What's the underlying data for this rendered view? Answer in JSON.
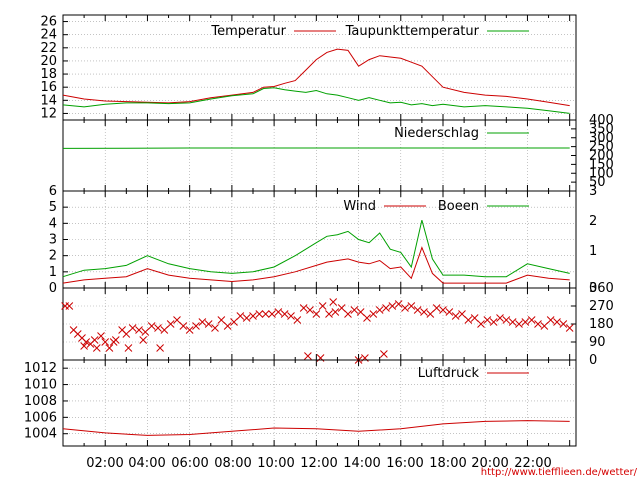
{
  "chart_data": [
    {
      "type": "line",
      "ylim": [
        11,
        27
      ],
      "yticks": [
        12,
        14,
        16,
        18,
        20,
        22,
        24,
        26
      ],
      "grid": true,
      "legend_position": "top",
      "series": [
        {
          "name": "Temperatur",
          "color": "#cc0000",
          "x": [
            0,
            1,
            2,
            3,
            4,
            5,
            6,
            7,
            8,
            9,
            9.5,
            10,
            10.5,
            11,
            11.5,
            12,
            12.5,
            13,
            13.5,
            14,
            14.5,
            15,
            15.5,
            16,
            16.5,
            17,
            17.5,
            18,
            19,
            20,
            21,
            22,
            23,
            24
          ],
          "values": [
            14.8,
            14.2,
            13.9,
            13.8,
            13.7,
            13.6,
            13.8,
            14.4,
            14.8,
            15.2,
            16.0,
            16.1,
            16.6,
            17.0,
            18.6,
            20.2,
            21.3,
            21.8,
            21.6,
            19.2,
            20.2,
            20.8,
            20.6,
            20.4,
            19.8,
            19.2,
            17.6,
            16.0,
            15.2,
            14.8,
            14.6,
            14.2,
            13.7,
            13.2
          ]
        },
        {
          "name": "Taupunkttemperatur",
          "color": "#00a000",
          "x": [
            0,
            1,
            2,
            3,
            4,
            5,
            6,
            7,
            8,
            9,
            9.5,
            10,
            10.5,
            11,
            11.5,
            12,
            12.5,
            13,
            13.5,
            14,
            14.5,
            15,
            15.5,
            16,
            16.5,
            17,
            17.5,
            18,
            19,
            20,
            21,
            22,
            23,
            24
          ],
          "values": [
            13.3,
            13.0,
            13.4,
            13.6,
            13.6,
            13.5,
            13.6,
            14.2,
            14.7,
            15.0,
            15.8,
            15.9,
            15.6,
            15.4,
            15.2,
            15.5,
            15.0,
            14.8,
            14.4,
            14.0,
            14.4,
            14.0,
            13.6,
            13.7,
            13.3,
            13.5,
            13.2,
            13.4,
            13.0,
            13.2,
            13.0,
            12.8,
            12.4,
            12.0
          ]
        }
      ]
    },
    {
      "type": "line",
      "ylim": [
        0,
        400
      ],
      "yticks": [
        50,
        100,
        150,
        200,
        250,
        300,
        350,
        400
      ],
      "grid": false,
      "legend_position": "top-right",
      "series": [
        {
          "name": "Niederschlag",
          "color": "#00a000",
          "x": [
            0,
            6,
            12,
            18,
            24
          ],
          "values": [
            240,
            242,
            242,
            242,
            242
          ]
        }
      ]
    },
    {
      "type": "line",
      "ylim": [
        0,
        6
      ],
      "yticks": [
        0,
        1,
        2,
        3,
        4,
        5,
        6
      ],
      "right_ticks": [
        "0",
        "1",
        "2",
        "3"
      ],
      "grid": true,
      "legend_position": "top-right",
      "series": [
        {
          "name": "Wind",
          "color": "#cc0000",
          "x": [
            0,
            1,
            2,
            3,
            4,
            5,
            6,
            7,
            8,
            9,
            10,
            11,
            12,
            12.5,
            13,
            13.5,
            14,
            14.5,
            15,
            15.5,
            16,
            16.5,
            17,
            17.5,
            18,
            19,
            20,
            21,
            22,
            23,
            24
          ],
          "values": [
            0.3,
            0.5,
            0.6,
            0.7,
            1.2,
            0.8,
            0.6,
            0.5,
            0.4,
            0.5,
            0.7,
            1.0,
            1.4,
            1.6,
            1.7,
            1.8,
            1.6,
            1.5,
            1.7,
            1.2,
            1.3,
            0.6,
            2.5,
            0.9,
            0.3,
            0.3,
            0.3,
            0.3,
            0.8,
            0.6,
            0.5
          ]
        },
        {
          "name": "Boeen",
          "color": "#00a000",
          "x": [
            0,
            1,
            2,
            3,
            4,
            5,
            6,
            7,
            8,
            9,
            10,
            11,
            12,
            12.5,
            13,
            13.5,
            14,
            14.5,
            15,
            15.5,
            16,
            16.5,
            17,
            17.5,
            18,
            19,
            20,
            21,
            22,
            23,
            24
          ],
          "values": [
            0.7,
            1.1,
            1.2,
            1.4,
            2.0,
            1.5,
            1.2,
            1.0,
            0.9,
            1.0,
            1.3,
            2.0,
            2.8,
            3.2,
            3.3,
            3.5,
            3.0,
            2.8,
            3.4,
            2.4,
            2.2,
            1.3,
            4.2,
            1.8,
            0.8,
            0.8,
            0.7,
            0.7,
            1.5,
            1.2,
            0.9
          ]
        }
      ]
    },
    {
      "type": "scatter",
      "ylim": [
        0,
        360
      ],
      "yticks": [
        0,
        90,
        180,
        270,
        360
      ],
      "grid": true,
      "series": [
        {
          "name": "",
          "color": "#cc0000",
          "x": [
            0.1,
            0.3,
            0.5,
            0.7,
            0.9,
            1.1,
            1.3,
            1.5,
            1.8,
            2.0,
            2.2,
            2.5,
            2.8,
            3.0,
            3.3,
            3.6,
            3.9,
            4.2,
            4.5,
            4.8,
            5.1,
            5.4,
            5.7,
            6.0,
            6.3,
            6.6,
            6.9,
            7.2,
            7.5,
            7.8,
            8.1,
            8.4,
            8.7,
            9.0,
            9.3,
            9.6,
            9.9,
            10.2,
            10.5,
            10.8,
            11.1,
            11.4,
            11.7,
            12.0,
            12.3,
            12.6,
            12.9,
            13.2,
            13.5,
            13.8,
            14.1,
            14.4,
            14.7,
            15.0,
            15.3,
            15.6,
            15.9,
            16.2,
            16.5,
            16.8,
            17.1,
            17.4,
            17.7,
            18.0,
            18.3,
            18.6,
            18.9,
            19.2,
            19.5,
            19.8,
            20.1,
            20.4,
            20.7,
            21.0,
            21.3,
            21.6,
            21.9,
            22.2,
            22.5,
            22.8,
            23.1,
            23.4,
            23.7,
            24.0,
            1.0,
            1.6,
            2.4,
            3.1,
            3.8,
            4.6,
            11.6,
            12.2,
            14.0,
            14.3,
            15.2,
            12.8
          ],
          "values": [
            270,
            270,
            150,
            130,
            110,
            90,
            80,
            100,
            120,
            90,
            60,
            100,
            150,
            130,
            160,
            150,
            140,
            170,
            160,
            150,
            180,
            200,
            170,
            150,
            170,
            190,
            180,
            160,
            200,
            170,
            190,
            220,
            210,
            220,
            230,
            230,
            230,
            240,
            230,
            220,
            200,
            260,
            250,
            230,
            270,
            230,
            240,
            260,
            230,
            250,
            240,
            210,
            230,
            250,
            260,
            270,
            280,
            260,
            270,
            250,
            240,
            230,
            260,
            250,
            240,
            220,
            230,
            200,
            210,
            180,
            200,
            190,
            210,
            200,
            190,
            180,
            190,
            200,
            180,
            170,
            200,
            190,
            180,
            160,
            70,
            60,
            90,
            60,
            100,
            60,
            20,
            10,
            0,
            10,
            30,
            290
          ]
        }
      ]
    },
    {
      "type": "line",
      "ylim": [
        1002.5,
        1013
      ],
      "yticks": [
        1004,
        1006,
        1008,
        1010,
        1012
      ],
      "grid": true,
      "legend_position": "top-right",
      "series": [
        {
          "name": "Luftdruck",
          "color": "#cc0000",
          "x": [
            0,
            2,
            4,
            6,
            8,
            10,
            12,
            14,
            16,
            18,
            20,
            22,
            24
          ],
          "values": [
            1004.6,
            1004.1,
            1003.8,
            1003.9,
            1004.3,
            1004.7,
            1004.6,
            1004.3,
            1004.6,
            1005.2,
            1005.5,
            1005.6,
            1005.5
          ]
        }
      ]
    }
  ],
  "x_axis": {
    "range": [
      0,
      24.3
    ],
    "tick_values": [
      2,
      4,
      6,
      8,
      10,
      12,
      14,
      16,
      18,
      20,
      22
    ],
    "tick_labels": [
      "02:00",
      "04:00",
      "06:00",
      "08:00",
      "10:00",
      "12:00",
      "14:00",
      "16:00",
      "18:00",
      "20:00",
      "22:00"
    ]
  },
  "footer": {
    "url": "http://www.tiefflieen.de/wetter/"
  },
  "colors": {
    "red": "#cc0000",
    "green": "#00a000",
    "grid": "#a0a0a0",
    "frame": "#000000"
  }
}
